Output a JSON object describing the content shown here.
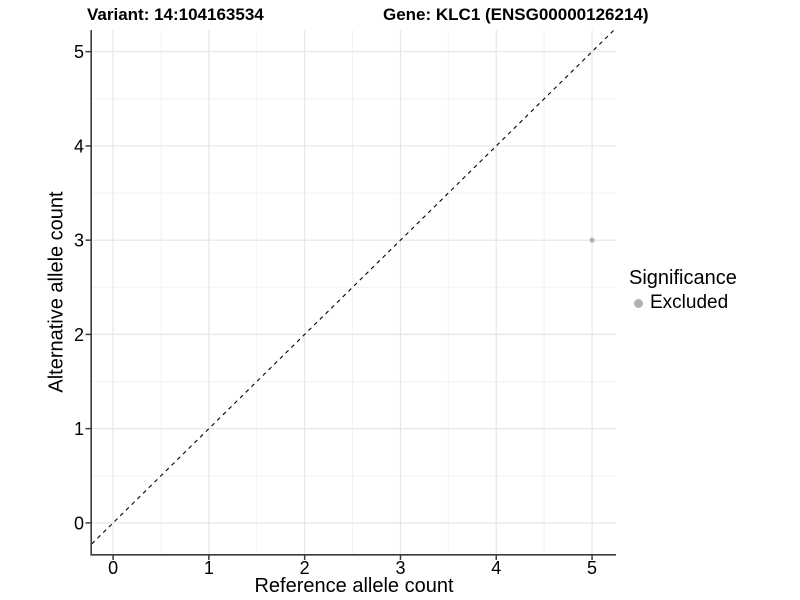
{
  "titles": {
    "variant": "Variant: 14:104163534",
    "gene": "Gene: KLC1 (ENSG00000126214)"
  },
  "axes": {
    "x_label": "Reference allele count",
    "y_label": "Alternative allele count"
  },
  "legend": {
    "title": "Significance",
    "items": [
      {
        "label": "Excluded",
        "color": "#b2b2b2"
      }
    ]
  },
  "colors": {
    "background": "#ffffff",
    "axis_line": "#3c3c3c",
    "tick_mark": "#3c3c3c",
    "grid_major": "#e6e6e6",
    "grid_minor": "#f2f2f2",
    "reference_line": "#000000",
    "point_excluded": "#b2b2b2",
    "text": "#000000"
  },
  "chart_data": {
    "type": "scatter",
    "title_left": "Variant: 14:104163534",
    "title_right": "Gene: KLC1 (ENSG00000126214)",
    "xlabel": "Reference allele count",
    "ylabel": "Alternative allele count",
    "xlim": [
      -0.22,
      5.25
    ],
    "ylim": [
      -0.33,
      5.23
    ],
    "x_ticks": [
      0,
      1,
      2,
      3,
      4,
      5
    ],
    "y_ticks": [
      0,
      1,
      2,
      3,
      4,
      5
    ],
    "minor_gridlines": [
      0.5,
      1.5,
      2.5,
      3.5,
      4.5
    ],
    "grid": "major+minor",
    "legend_position": "right",
    "series": [
      {
        "name": "Excluded",
        "color": "#b2b2b2",
        "points": [
          {
            "x": 5,
            "y": 3
          }
        ]
      }
    ],
    "reference_line": {
      "type": "identity",
      "slope": 1,
      "intercept": 0,
      "style": "dashed",
      "color": "#000000"
    }
  }
}
